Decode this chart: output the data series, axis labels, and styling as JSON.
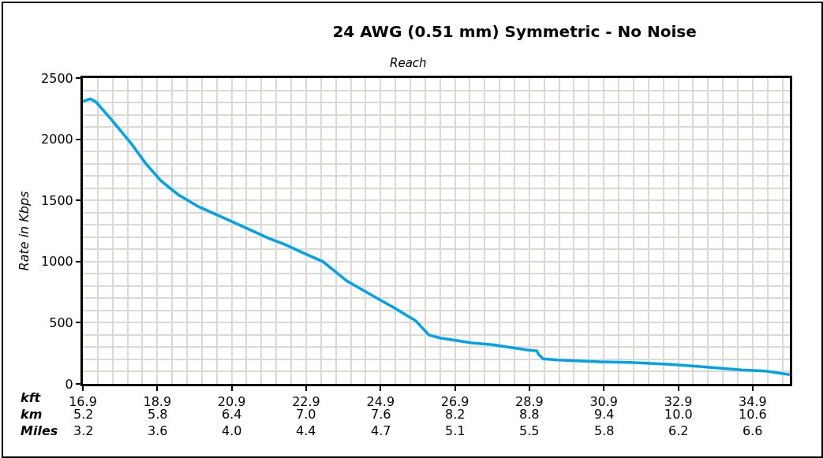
{
  "chart_data": {
    "type": "line",
    "title": "24 AWG (0.51 mm) Symmetric - No Noise",
    "subtitle": "Reach",
    "ylabel": "Rate in Kbps",
    "xlabel": "kft",
    "x2label": "km",
    "annotations": [
      "Miles",
      "3.2",
      "3.6",
      "4.0",
      "4.4",
      "4.7",
      "5.1",
      "5.5",
      "5.8",
      "6.2",
      "6.6"
    ],
    "x": [
      16.9,
      17.1,
      17.25,
      17.67,
      18.2,
      18.58,
      19.0,
      19.47,
      20.0,
      20.85,
      21.9,
      22.33,
      22.86,
      23.35,
      24.0,
      24.87,
      25.25,
      25.6,
      25.85,
      26.0,
      26.2,
      26.5,
      27.35,
      27.9,
      28.85,
      29.1,
      29.15,
      29.27,
      29.7,
      30.8,
      31.6,
      32.7,
      33.55,
      34.6,
      35.25,
      35.9
    ],
    "series": [
      {
        "color": "#00a2e8",
        "values": [
          2310,
          2330,
          2305,
          2160,
          1965,
          1805,
          1660,
          1545,
          1450,
          1335,
          1190,
          1140,
          1065,
          1000,
          840,
          690,
          625,
          560,
          515,
          465,
          400,
          375,
          335,
          320,
          277,
          270,
          240,
          205,
          195,
          180,
          175,
          160,
          140,
          115,
          105,
          75
        ]
      }
    ],
    "xlim": [
      16.9,
      35.9
    ],
    "xticks": [
      16.9,
      18.9,
      20.9,
      22.9,
      24.9,
      26.9,
      28.9,
      30.9,
      32.9,
      34.9
    ],
    "x2lim": [
      5.151,
      10.942
    ],
    "x2ticks": [
      {
        "value": 5.151,
        "label": "5.2"
      },
      {
        "value": 5.761,
        "label": "5.8"
      },
      {
        "value": 6.37,
        "label": "6.4"
      },
      {
        "value": 6.98,
        "label": "7.0"
      },
      {
        "value": 7.59,
        "label": "7.6"
      },
      {
        "value": 8.199,
        "label": "8.2"
      },
      {
        "value": 8.809,
        "label": "8.8"
      },
      {
        "value": 9.418,
        "label": "9.4"
      },
      {
        "value": 10.028,
        "label": "10.0"
      },
      {
        "value": 10.638,
        "label": "10.6"
      }
    ],
    "ylim": [
      0,
      2500
    ],
    "yticks": [
      0,
      500,
      1000,
      1500,
      2000,
      2500
    ],
    "grid": true,
    "line_style": "solid",
    "marker": "none"
  }
}
